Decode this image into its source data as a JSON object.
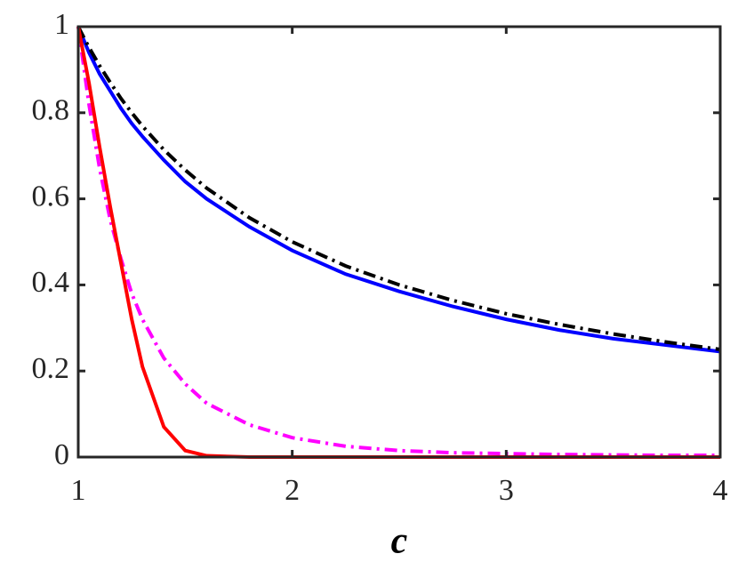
{
  "chart_data": {
    "type": "line",
    "xlabel": "c",
    "x": [
      1,
      1.05,
      1.1,
      1.15,
      1.2,
      1.25,
      1.3,
      1.4,
      1.5,
      1.6,
      1.8,
      2,
      2.25,
      2.5,
      2.75,
      3,
      3.25,
      3.5,
      3.75,
      4
    ],
    "series": [
      {
        "color": "#0000ff",
        "style": "solid",
        "values": [
          1,
          0.94,
          0.89,
          0.85,
          0.81,
          0.775,
          0.745,
          0.69,
          0.64,
          0.6,
          0.535,
          0.48,
          0.425,
          0.385,
          0.35,
          0.32,
          0.295,
          0.275,
          0.26,
          0.245
        ]
      },
      {
        "color": "#000000",
        "style": "dash-dot",
        "values": [
          1,
          0.952,
          0.909,
          0.87,
          0.833,
          0.8,
          0.769,
          0.714,
          0.667,
          0.625,
          0.556,
          0.5,
          0.444,
          0.4,
          0.364,
          0.333,
          0.308,
          0.286,
          0.267,
          0.25
        ]
      },
      {
        "color": "#ff00ff",
        "style": "dash-dot",
        "values": [
          1,
          0.82,
          0.67,
          0.55,
          0.46,
          0.38,
          0.32,
          0.23,
          0.17,
          0.125,
          0.075,
          0.045,
          0.025,
          0.015,
          0.01,
          0.008,
          0.006,
          0.005,
          0.004,
          0.004
        ]
      },
      {
        "color": "#ff0000",
        "style": "solid",
        "values": [
          1,
          0.87,
          0.72,
          0.58,
          0.45,
          0.32,
          0.21,
          0.07,
          0.015,
          0.003,
          0,
          0,
          0,
          0,
          0,
          0,
          0,
          0,
          0,
          0
        ]
      }
    ],
    "xlim": [
      1,
      4
    ],
    "xticks": [
      1,
      2,
      3,
      4
    ],
    "ylim": [
      0,
      1
    ],
    "yticks": [
      0,
      0.2,
      0.4,
      0.6,
      0.8,
      1
    ]
  }
}
